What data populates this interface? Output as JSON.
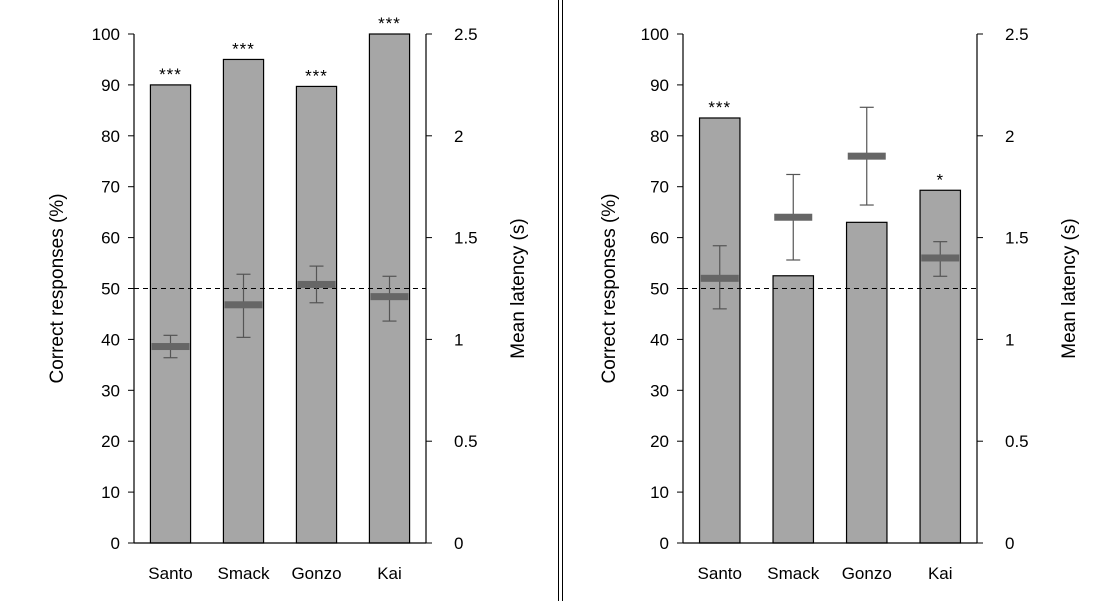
{
  "chart_data": [
    {
      "type": "bar",
      "categories": [
        "Santo",
        "Smack",
        "Gonzo",
        "Kai"
      ],
      "ylabel": "Correct responses (%)",
      "ylim": [
        0,
        100
      ],
      "yticks": [
        "0",
        "10",
        "20",
        "30",
        "40",
        "50",
        "60",
        "70",
        "80",
        "90",
        "100"
      ],
      "y2label": "Mean latency (s)",
      "y2lim": [
        0,
        2.5
      ],
      "y2ticks": [
        "0",
        "0.5",
        "1",
        "1.5",
        "2",
        "2.5"
      ],
      "series": [
        {
          "values": [
            90,
            95,
            89.7,
            100
          ],
          "color": "#a6a6a6"
        },
        {
          "axis": "right",
          "values": [
            0.965,
            1.17,
            1.27,
            1.21
          ],
          "err_low": [
            0.91,
            1.01,
            1.18,
            1.09
          ],
          "err_high": [
            1.02,
            1.32,
            1.36,
            1.31
          ],
          "color": "#666666"
        }
      ],
      "significance": [
        "***",
        "***",
        "***",
        "***"
      ],
      "reference_line": 50,
      "grid": false
    },
    {
      "type": "bar",
      "categories": [
        "Santo",
        "Smack",
        "Gonzo",
        "Kai"
      ],
      "ylabel": "Correct responses (%)",
      "ylim": [
        0,
        100
      ],
      "yticks": [
        "0",
        "10",
        "20",
        "30",
        "40",
        "50",
        "60",
        "70",
        "80",
        "90",
        "100"
      ],
      "y2label": "Mean latency (s)",
      "y2lim": [
        0,
        2.5
      ],
      "y2ticks": [
        "0",
        "0.5",
        "1",
        "1.5",
        "2",
        "2.5"
      ],
      "series": [
        {
          "values": [
            83.5,
            52.5,
            63,
            69.3
          ],
          "color": "#a6a6a6"
        },
        {
          "axis": "right",
          "values": [
            1.3,
            1.6,
            1.9,
            1.4
          ],
          "err_low": [
            1.15,
            1.39,
            1.66,
            1.31
          ],
          "err_high": [
            1.46,
            1.81,
            2.14,
            1.48
          ],
          "color": "#666666"
        }
      ],
      "significance": [
        "***",
        "",
        "",
        "*"
      ],
      "reference_line": 50,
      "grid": false
    }
  ]
}
